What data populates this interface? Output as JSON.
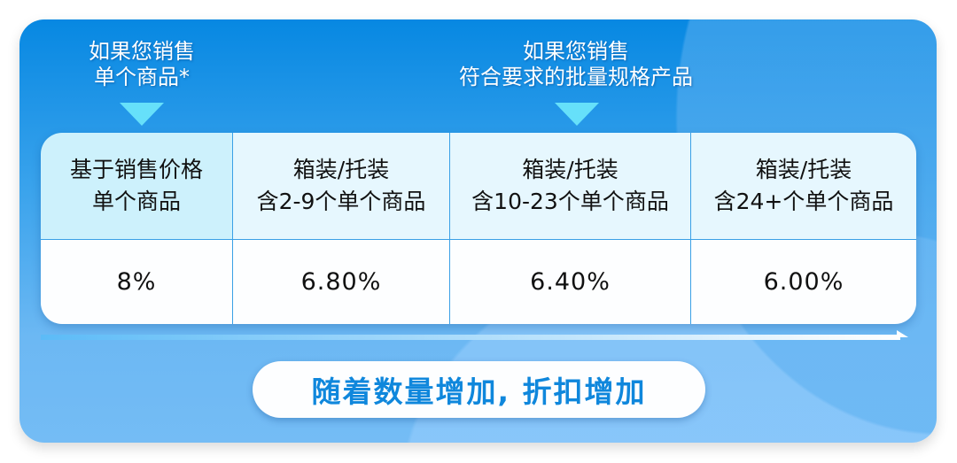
{
  "labels": {
    "single": [
      "如果您销售",
      "单个商品*"
    ],
    "bulk": [
      "如果您销售",
      "符合要求的批量规格产品"
    ]
  },
  "table": {
    "headers": [
      [
        "基于销售价格",
        "单个商品"
      ],
      [
        "箱装/托装",
        "含2-9个单个商品"
      ],
      [
        "箱装/托装",
        "含10-23个单个商品"
      ],
      [
        "箱装/托装",
        "含24+个单个商品"
      ]
    ],
    "values": [
      "8%",
      "6.80%",
      "6.40%",
      "6.00%"
    ]
  },
  "banner": "随着数量增加, 折扣增加",
  "colors": {
    "accent": "#0f87dc",
    "pointer": "#66e0fa"
  }
}
